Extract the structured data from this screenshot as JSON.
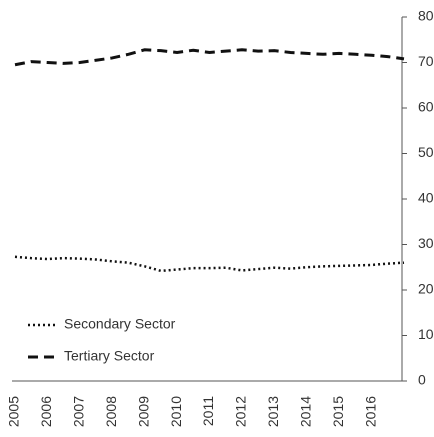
{
  "chart_data": {
    "type": "line",
    "x": [
      2005,
      2005.5,
      2006,
      2006.5,
      2007,
      2007.5,
      2008,
      2008.5,
      2009,
      2009.5,
      2010,
      2010.5,
      2011,
      2011.5,
      2012,
      2012.5,
      2013,
      2013.5,
      2014,
      2014.5,
      2015,
      2015.5,
      2016,
      2016.5,
      2017
    ],
    "series": [
      {
        "name": "Secondary Sector",
        "color": "#111111",
        "style": "dotted",
        "values": [
          27.3,
          27,
          26.8,
          27,
          26.9,
          26.7,
          26.3,
          26,
          25.2,
          24.2,
          24.5,
          24.8,
          24.8,
          24.9,
          24.3,
          24.6,
          24.9,
          24.7,
          25,
          25.2,
          25.3,
          25.4,
          25.5,
          25.8,
          26
        ]
      },
      {
        "name": "Tertiary Sector",
        "color": "#111111",
        "style": "dashed",
        "values": [
          69.5,
          70.2,
          70,
          69.8,
          70,
          70.5,
          71,
          71.8,
          72.8,
          72.6,
          72.2,
          72.7,
          72.2,
          72.5,
          72.8,
          72.5,
          72.6,
          72.2,
          72,
          71.8,
          72,
          71.8,
          71.6,
          71.3,
          70.8
        ]
      }
    ],
    "xlim": [
      2005,
      2017
    ],
    "xticks": [
      2005,
      2006,
      2007,
      2008,
      2009,
      2010,
      2011,
      2012,
      2013,
      2014,
      2015,
      2016
    ],
    "ylim": [
      0,
      80
    ],
    "yticks": [
      0,
      10,
      20,
      30,
      40,
      50,
      60,
      70,
      80
    ],
    "y_axis_side": "right",
    "legend": "lower left"
  }
}
